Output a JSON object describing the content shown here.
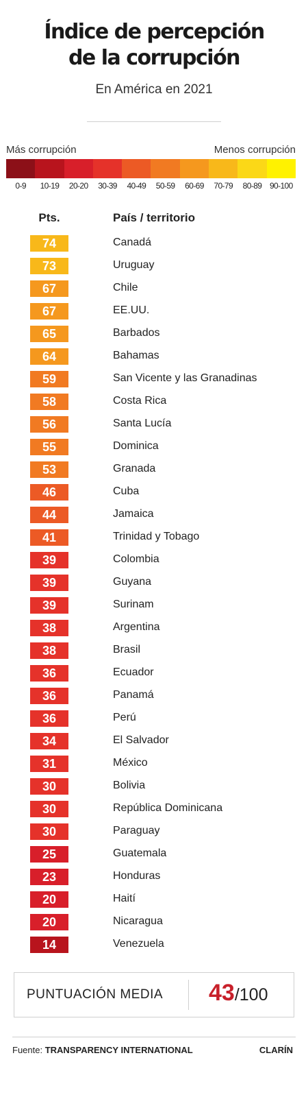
{
  "title_line1": "Índice de percepción",
  "title_line2": "de la corrupción",
  "subtitle": "En América en 2021",
  "legend": {
    "left_label": "Más corrupción",
    "right_label": "Menos corrupción",
    "ranges": [
      "0-9",
      "10-19",
      "20-20",
      "30-39",
      "40-49",
      "50-59",
      "60-69",
      "70-79",
      "80-89",
      "90-100"
    ],
    "colors": [
      "#8c1018",
      "#b8141d",
      "#d81f2a",
      "#e5322a",
      "#ec5a25",
      "#f17a22",
      "#f5981e",
      "#f8b81a",
      "#fbd817",
      "#fff200"
    ]
  },
  "columns": {
    "pts": "Pts.",
    "country": "País / territorio"
  },
  "chart_data": {
    "type": "table",
    "title": "Índice de percepción de la corrupción",
    "subtitle": "En América en 2021",
    "rows": [
      {
        "country": "Canadá",
        "score": 74
      },
      {
        "country": "Uruguay",
        "score": 73
      },
      {
        "country": "Chile",
        "score": 67
      },
      {
        "country": "EE.UU.",
        "score": 67
      },
      {
        "country": "Barbados",
        "score": 65
      },
      {
        "country": "Bahamas",
        "score": 64
      },
      {
        "country": "San Vicente y las Granadinas",
        "score": 59
      },
      {
        "country": "Costa Rica",
        "score": 58
      },
      {
        "country": "Santa Lucía",
        "score": 56
      },
      {
        "country": "Dominica",
        "score": 55
      },
      {
        "country": "Granada",
        "score": 53
      },
      {
        "country": "Cuba",
        "score": 46
      },
      {
        "country": "Jamaica",
        "score": 44
      },
      {
        "country": "Trinidad y Tobago",
        "score": 41
      },
      {
        "country": "Colombia",
        "score": 39
      },
      {
        "country": "Guyana",
        "score": 39
      },
      {
        "country": "Surinam",
        "score": 39
      },
      {
        "country": "Argentina",
        "score": 38
      },
      {
        "country": "Brasil",
        "score": 38
      },
      {
        "country": "Ecuador",
        "score": 36
      },
      {
        "country": "Panamá",
        "score": 36
      },
      {
        "country": "Perú",
        "score": 36
      },
      {
        "country": "El Salvador",
        "score": 34
      },
      {
        "country": "México",
        "score": 31
      },
      {
        "country": "Bolivia",
        "score": 30
      },
      {
        "country": "República Dominicana",
        "score": 30
      },
      {
        "country": "Paraguay",
        "score": 30
      },
      {
        "country": "Guatemala",
        "score": 25
      },
      {
        "country": "Honduras",
        "score": 23
      },
      {
        "country": "Haití",
        "score": 20
      },
      {
        "country": "Nicaragua",
        "score": 20
      },
      {
        "country": "Venezuela",
        "score": 14
      }
    ]
  },
  "average": {
    "label": "PUNTUACIÓN MEDIA",
    "value": "43",
    "denominator": "/100"
  },
  "footer": {
    "source_prefix": "Fuente:",
    "source": "TRANSPARENCY INTERNATIONAL",
    "brand": "CLARÍN"
  }
}
